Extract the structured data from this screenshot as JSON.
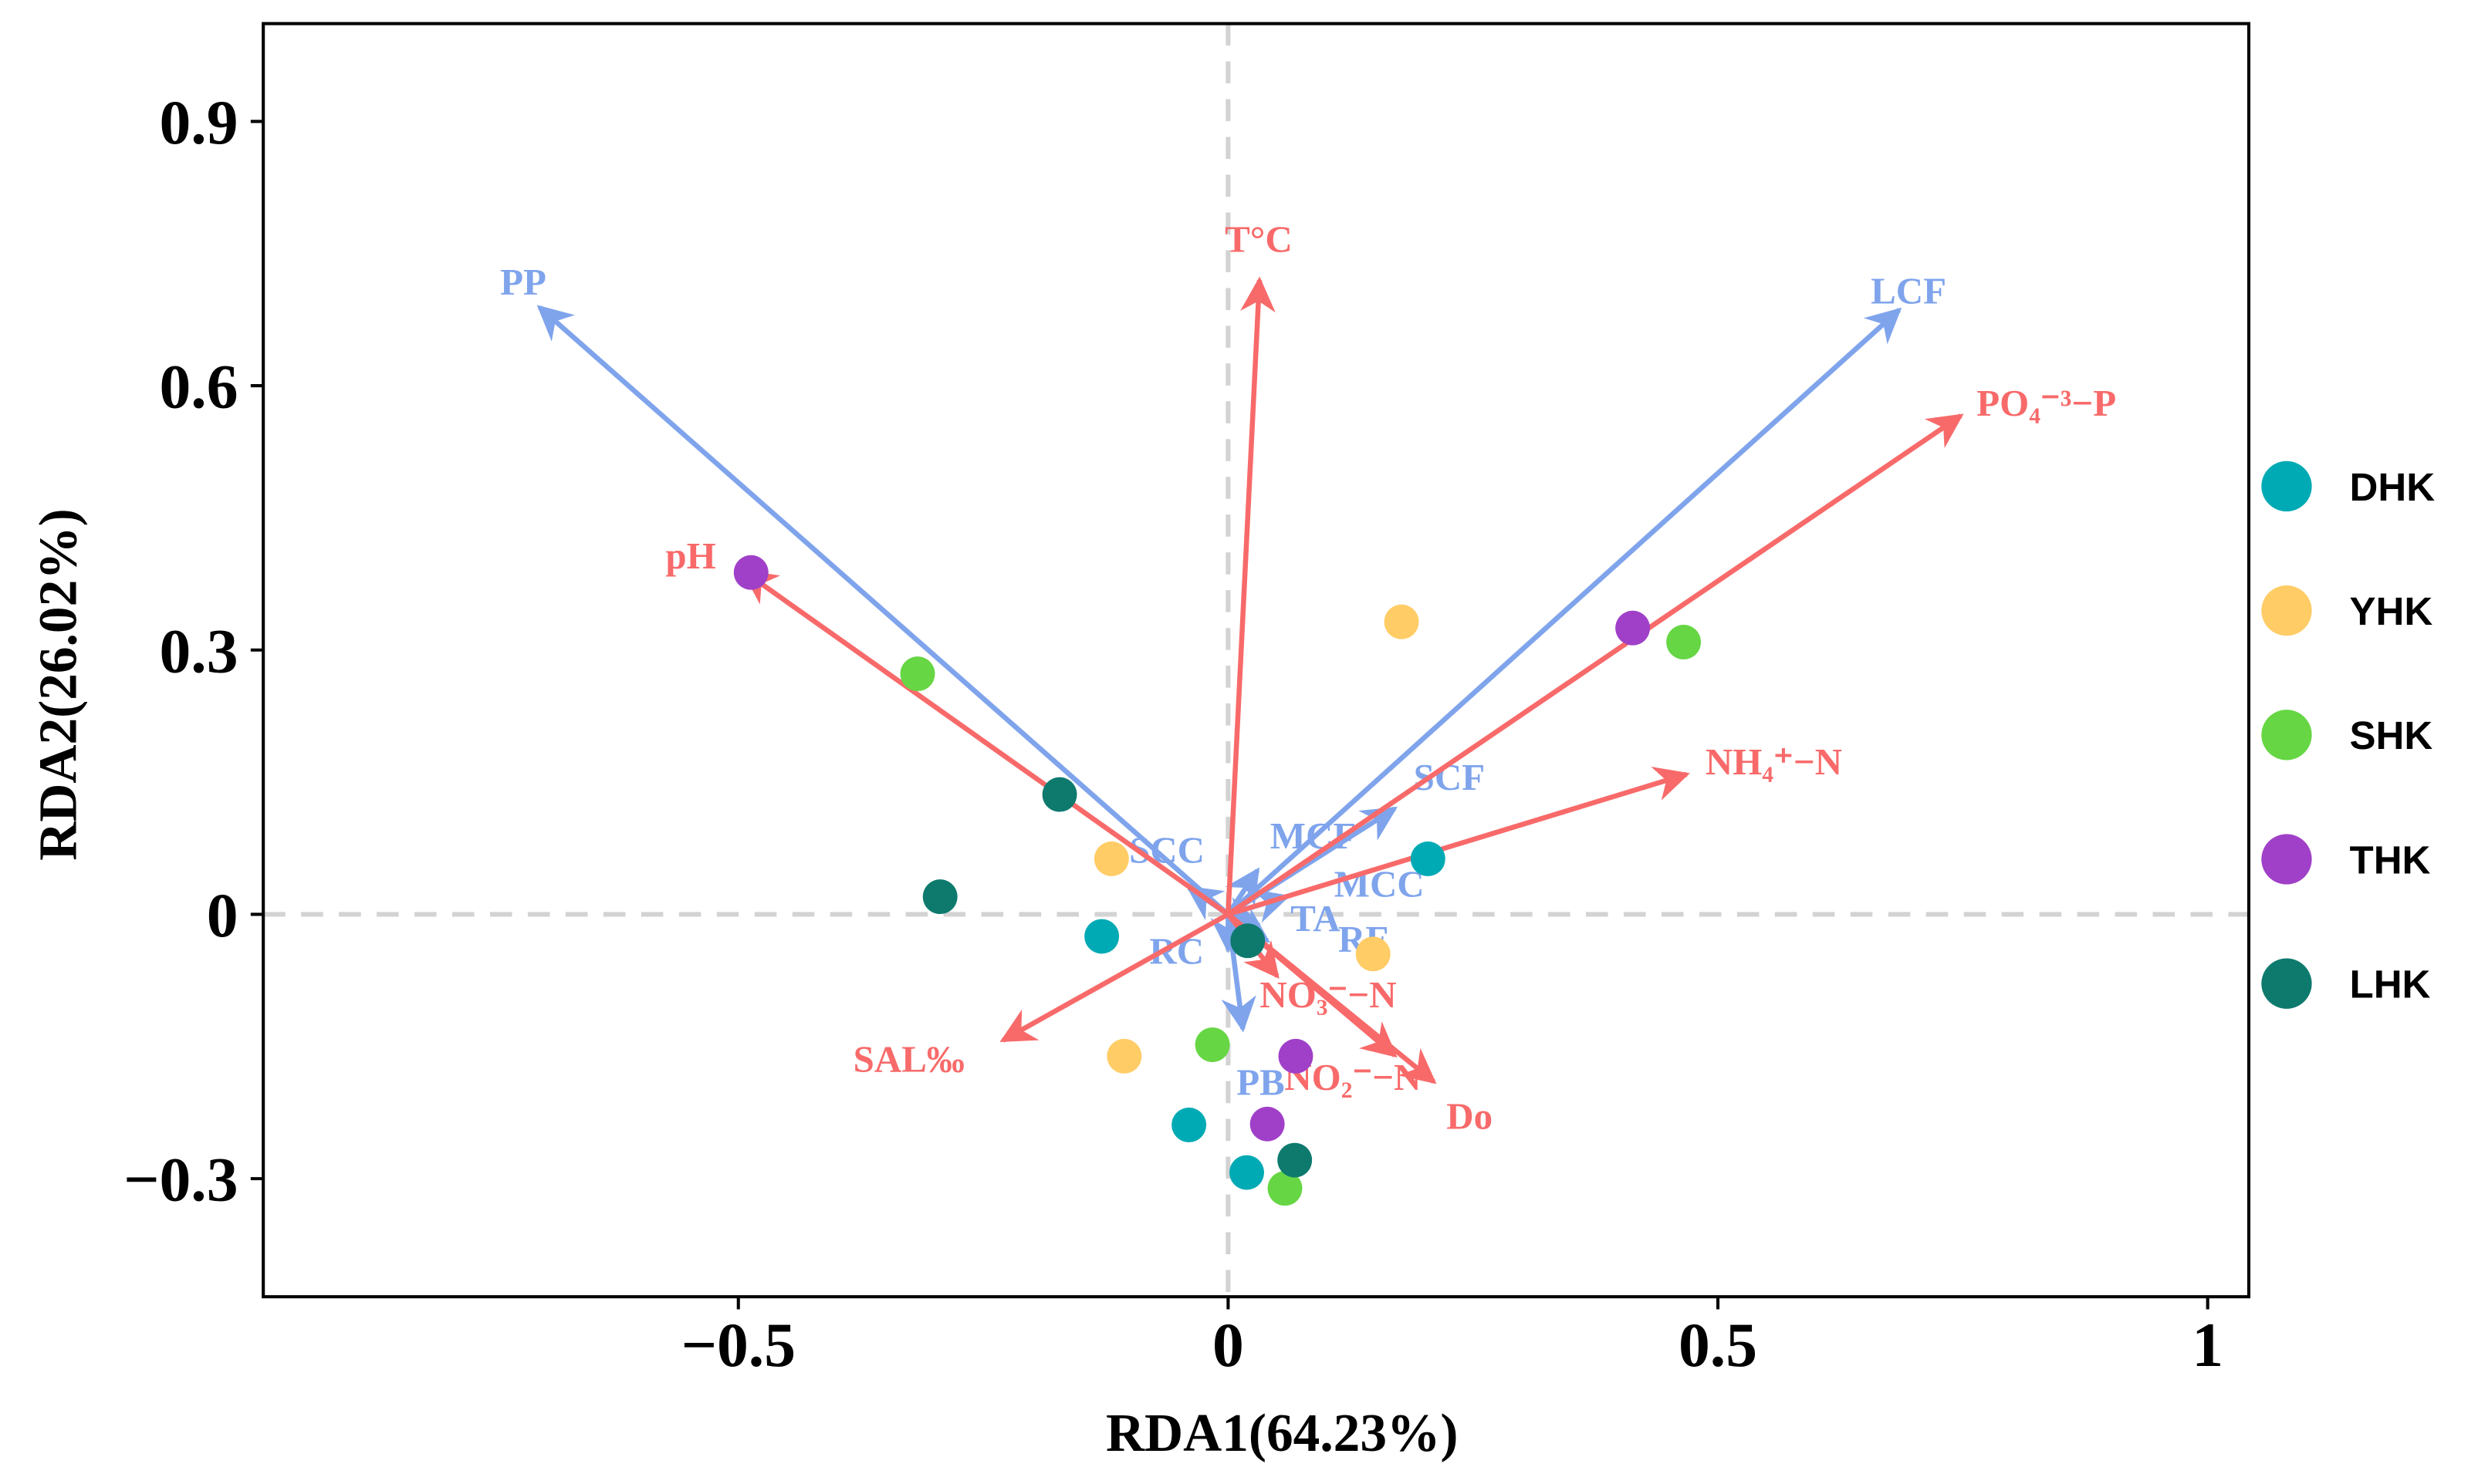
{
  "chart_data": {
    "type": "scatter",
    "title": "",
    "xlabel": "RDA1(64.23%)",
    "ylabel": "RDA2(26.02%)",
    "xlim": [
      -0.985,
      1.042
    ],
    "ylim": [
      -0.434,
      1.011
    ],
    "xticks": [
      {
        "v": -0.5,
        "label": "−0.5"
      },
      {
        "v": 0,
        "label": "0"
      },
      {
        "v": 0.5,
        "label": "0.5"
      },
      {
        "v": 1,
        "label": "1"
      }
    ],
    "yticks": [
      {
        "v": -0.3,
        "label": "−0.3"
      },
      {
        "v": 0,
        "label": "0"
      },
      {
        "v": 0.3,
        "label": "0.3"
      },
      {
        "v": 0.6,
        "label": "0.6"
      },
      {
        "v": 0.9,
        "label": "0.9"
      }
    ],
    "grid": false,
    "reference_lines": "dashed at x=0 and y=0",
    "legend_position": "right",
    "colors": {
      "env": "#F86A6A",
      "species": "#7FA4EC",
      "zero_line": "#D3D3D3"
    },
    "vectors": [
      {
        "name": "PP",
        "group": "species",
        "x": -0.703,
        "y": 0.689
      },
      {
        "name": "LCF",
        "group": "species",
        "x": 0.685,
        "y": 0.686
      },
      {
        "name": "SCF",
        "group": "species",
        "x": 0.17,
        "y": 0.12
      },
      {
        "name": "MCF",
        "group": "species",
        "x": 0.03,
        "y": 0.05
      },
      {
        "name": "SCC",
        "group": "species",
        "x": -0.04,
        "y": 0.03
      },
      {
        "name": "MCC",
        "group": "species",
        "x": 0.06,
        "y": 0.02
      },
      {
        "name": "TA",
        "group": "species",
        "x": 0.03,
        "y": -0.01
      },
      {
        "name": "RF",
        "group": "species",
        "x": 0.04,
        "y": -0.03
      },
      {
        "name": "RC",
        "group": "species",
        "x": 0.0,
        "y": -0.04
      },
      {
        "name": "PB",
        "group": "species",
        "x": 0.015,
        "y": -0.13
      },
      {
        "name": "T°C",
        "group": "env",
        "x": 0.032,
        "y": 0.72
      },
      {
        "name": "PO₄⁻³−P",
        "group": "env",
        "x": 0.748,
        "y": 0.566
      },
      {
        "name": "pH",
        "group": "env",
        "x": -0.494,
        "y": 0.389
      },
      {
        "name": "NH₄⁺−N",
        "group": "env",
        "x": 0.468,
        "y": 0.159
      },
      {
        "name": "SAL‰",
        "group": "env",
        "x": -0.23,
        "y": -0.143
      },
      {
        "name": "NO₃⁻−N",
        "group": "env",
        "x": 0.05,
        "y": -0.07
      },
      {
        "name": "NO₂⁻−N",
        "group": "env",
        "x": 0.17,
        "y": -0.16
      },
      {
        "name": "Do",
        "group": "env",
        "x": 0.21,
        "y": -0.19
      }
    ],
    "series": [
      {
        "name": "DHK",
        "color": "#00AAB4",
        "points": [
          [
            0.204,
            0.063
          ],
          [
            -0.129,
            -0.025
          ],
          [
            -0.04,
            -0.239
          ],
          [
            0.019,
            -0.293
          ]
        ]
      },
      {
        "name": "YHK",
        "color": "#FFCC66",
        "points": [
          [
            0.177,
            0.332
          ],
          [
            -0.119,
            0.063
          ],
          [
            0.148,
            -0.045
          ],
          [
            -0.106,
            -0.161
          ]
        ]
      },
      {
        "name": "SHK",
        "color": "#66D644",
        "points": [
          [
            -0.317,
            0.273
          ],
          [
            0.465,
            0.309
          ],
          [
            -0.016,
            -0.148
          ],
          [
            0.058,
            -0.311
          ]
        ]
      },
      {
        "name": "THK",
        "color": "#A040C8",
        "points": [
          [
            -0.487,
            0.388
          ],
          [
            0.413,
            0.325
          ],
          [
            0.069,
            -0.161
          ],
          [
            0.04,
            -0.238
          ]
        ]
      },
      {
        "name": "LHK",
        "color": "#0E7A6E",
        "points": [
          [
            -0.172,
            0.136
          ],
          [
            -0.294,
            0.02
          ],
          [
            0.068,
            -0.279
          ],
          [
            0.02,
            -0.03
          ]
        ]
      }
    ]
  }
}
